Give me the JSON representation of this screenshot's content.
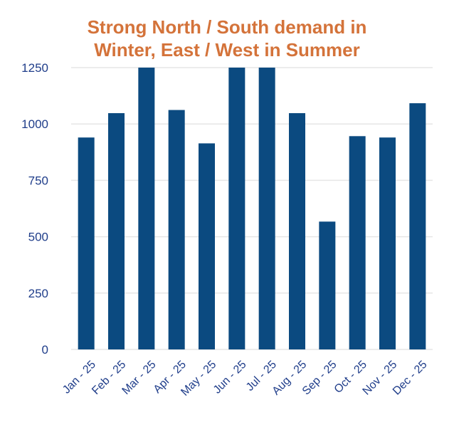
{
  "chart_data": {
    "type": "bar",
    "title_lines": [
      "Strong North / South demand in",
      "Winter, East / West in Summer"
    ],
    "categories": [
      "Jan - 25",
      "Feb - 25",
      "Mar - 25",
      "Apr - 25",
      "May - 25",
      "Jun - 25",
      "Jul - 25",
      "Aug - 25",
      "Sep - 25",
      "Oct - 25",
      "Nov - 25",
      "Dec - 25"
    ],
    "values": [
      940,
      1048,
      1260,
      1062,
      914,
      1260,
      1260,
      1048,
      567,
      946,
      940,
      1092
    ],
    "ylim": [
      0,
      1250
    ],
    "yticks": [
      0,
      250,
      500,
      750,
      1000,
      1250
    ],
    "xlabel": "",
    "ylabel": "",
    "grid": true,
    "bar_color": "#0b4a80",
    "grid_color": "#e6e6e6",
    "title_color": "#d4733a",
    "tick_color": "#1f3d8a"
  }
}
